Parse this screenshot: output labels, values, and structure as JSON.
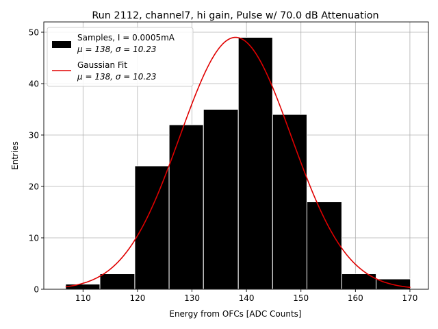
{
  "chart_data": {
    "type": "bar",
    "title": "Run 2112, channel7, hi gain, Pulse w/ 70.0 dB Attenuation",
    "xlabel": "Energy from OFCs [ADC Counts]",
    "ylabel": "Entries",
    "xlim": [
      102.8,
      173.4
    ],
    "ylim": [
      0,
      52
    ],
    "xticks": [
      110,
      120,
      130,
      140,
      150,
      160,
      170
    ],
    "yticks": [
      0,
      10,
      20,
      30,
      40,
      50
    ],
    "grid": true,
    "legend_position": "top-left",
    "histogram": {
      "name": "Samples, I = 0.0005mA",
      "stats": "μ = 138, σ = 10.23",
      "color": "#000000",
      "edge_color": "#ffffff",
      "bin_edges": [
        106.8,
        113.1,
        119.5,
        125.8,
        132.1,
        138.5,
        144.8,
        151.1,
        157.5,
        163.8,
        170.1
      ],
      "counts": [
        1,
        3,
        24,
        32,
        35,
        49,
        34,
        17,
        3,
        2
      ]
    },
    "fit": {
      "name": "Gaussian Fit",
      "stats": "μ = 138, σ = 10.23",
      "color": "#e00000",
      "mu": 138,
      "sigma": 10.23,
      "amplitude": 49,
      "x_range": [
        106.8,
        170.1
      ]
    }
  }
}
